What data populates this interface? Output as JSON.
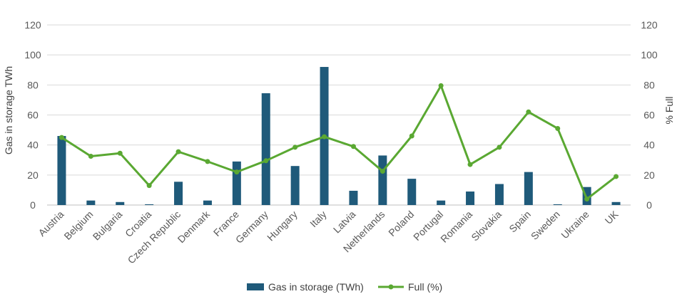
{
  "chart_data": {
    "type": "bar",
    "categories": [
      "Austria",
      "Belgium",
      "Bulgaria",
      "Croatia",
      "Czech Republic",
      "Denmark",
      "France",
      "Germany",
      "Hungary",
      "Italy",
      "Latvia",
      "Netherlands",
      "Poland",
      "Portugal",
      "Romania",
      "Slovakia",
      "Spain",
      "Sweden",
      "Ukraine",
      "UK"
    ],
    "series": [
      {
        "name": "Gas in storage (TWh)",
        "type": "bar",
        "axis": "left",
        "color": "#1f5a7a",
        "values": [
          46,
          3,
          2,
          0.5,
          15.5,
          3,
          29,
          74.5,
          26,
          92,
          9.5,
          33,
          17.5,
          3,
          9,
          14,
          22,
          0.5,
          12,
          2
        ]
      },
      {
        "name": "Full (%)",
        "type": "line",
        "axis": "right",
        "color": "#5aa832",
        "values": [
          45,
          32.5,
          34.5,
          13,
          35.5,
          29,
          22,
          29.5,
          38.5,
          45.5,
          39,
          22.5,
          46,
          79.5,
          27,
          38.5,
          62,
          51,
          4,
          19
        ]
      }
    ],
    "ylabel": "Gas in storage TWh",
    "y2label": "% Full",
    "ylim": [
      0,
      120
    ],
    "y2lim": [
      0,
      120
    ],
    "yticks": [
      "0",
      "20",
      "40",
      "60",
      "80",
      "100",
      "120"
    ],
    "y2ticks": [
      "0",
      "20",
      "40",
      "60",
      "80",
      "100",
      "120"
    ],
    "grid": true,
    "legend_position": "bottom"
  }
}
